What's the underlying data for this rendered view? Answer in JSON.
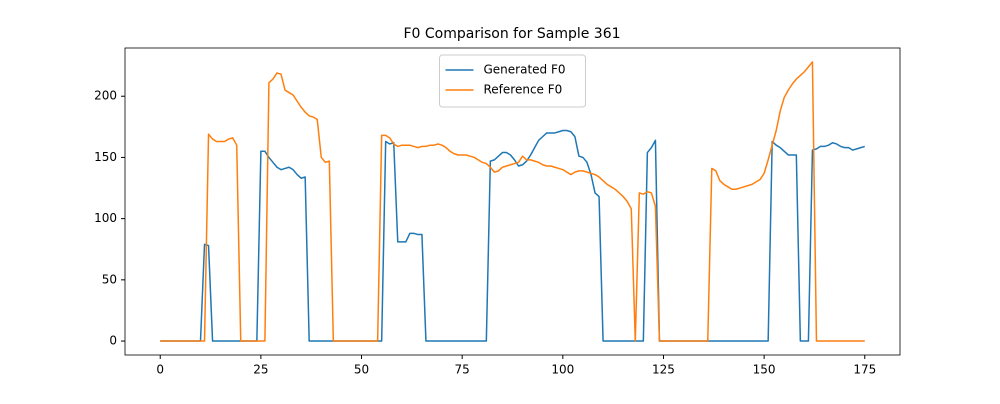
{
  "chart_data": {
    "type": "line",
    "title": "F0 Comparison for Sample 361",
    "x": [
      0,
      1,
      2,
      3,
      4,
      5,
      6,
      7,
      8,
      9,
      10,
      11,
      12,
      13,
      14,
      15,
      16,
      17,
      18,
      19,
      20,
      21,
      22,
      23,
      24,
      25,
      26,
      27,
      28,
      29,
      30,
      31,
      32,
      33,
      34,
      35,
      36,
      37,
      38,
      39,
      40,
      41,
      42,
      43,
      44,
      45,
      46,
      47,
      48,
      49,
      50,
      51,
      52,
      53,
      54,
      55,
      56,
      57,
      58,
      59,
      60,
      61,
      62,
      63,
      64,
      65,
      66,
      67,
      68,
      69,
      70,
      71,
      72,
      73,
      74,
      75,
      76,
      77,
      78,
      79,
      80,
      81,
      82,
      83,
      84,
      85,
      86,
      87,
      88,
      89,
      90,
      91,
      92,
      93,
      94,
      95,
      96,
      97,
      98,
      99,
      100,
      101,
      102,
      103,
      104,
      105,
      106,
      107,
      108,
      109,
      110,
      111,
      112,
      113,
      114,
      115,
      116,
      117,
      118,
      119,
      120,
      121,
      122,
      123,
      124,
      125,
      126,
      127,
      128,
      129,
      130,
      131,
      132,
      133,
      134,
      135,
      136,
      137,
      138,
      139,
      140,
      141,
      142,
      143,
      144,
      145,
      146,
      147,
      148,
      149,
      150,
      151,
      152,
      153,
      154,
      155,
      156,
      157,
      158,
      159,
      160,
      161,
      162,
      163,
      164,
      165,
      166,
      167,
      168,
      169,
      170,
      171,
      172,
      173,
      174,
      175
    ],
    "series": [
      {
        "name": "Generated F0",
        "color": "#1f77b4",
        "values": [
          0,
          0,
          0,
          0,
          0,
          0,
          0,
          0,
          0,
          0,
          0,
          79,
          78,
          0,
          0,
          0,
          0,
          0,
          0,
          0,
          0,
          0,
          0,
          0,
          0,
          155,
          155,
          150,
          146,
          142,
          140,
          141,
          142,
          140,
          136,
          133,
          134,
          0,
          0,
          0,
          0,
          0,
          0,
          0,
          0,
          0,
          0,
          0,
          0,
          0,
          0,
          0,
          0,
          0,
          0,
          0,
          163,
          161,
          162,
          81,
          81,
          81,
          88,
          88,
          87,
          87,
          0,
          0,
          0,
          0,
          0,
          0,
          0,
          0,
          0,
          0,
          0,
          0,
          0,
          0,
          0,
          0,
          147,
          148,
          151,
          154,
          154,
          152,
          148,
          143,
          144,
          147,
          152,
          158,
          164,
          167,
          170,
          170,
          170,
          171,
          172,
          172,
          171,
          167,
          151,
          150,
          146,
          136,
          121,
          118,
          0,
          0,
          0,
          0,
          0,
          0,
          0,
          0,
          0,
          0,
          0,
          154,
          158,
          164,
          0,
          0,
          0,
          0,
          0,
          0,
          0,
          0,
          0,
          0,
          0,
          0,
          0,
          0,
          0,
          0,
          0,
          0,
          0,
          0,
          0,
          0,
          0,
          0,
          0,
          0,
          0,
          0,
          163,
          160,
          158,
          155,
          152,
          152,
          152,
          0,
          0,
          0,
          156,
          157,
          159,
          159,
          160,
          162,
          161,
          159,
          158,
          158,
          156,
          157,
          158,
          159
        ]
      },
      {
        "name": "Reference F0",
        "color": "#ff7f0e",
        "values": [
          0,
          0,
          0,
          0,
          0,
          0,
          0,
          0,
          0,
          0,
          0,
          0,
          169,
          165,
          163,
          163,
          163,
          165,
          166,
          160,
          0,
          0,
          0,
          0,
          0,
          0,
          0,
          211,
          214,
          219,
          218,
          205,
          203,
          201,
          196,
          191,
          187,
          184,
          183,
          181,
          150,
          146,
          147,
          0,
          0,
          0,
          0,
          0,
          0,
          0,
          0,
          0,
          0,
          0,
          0,
          168,
          168,
          166,
          161,
          159,
          160,
          160,
          160,
          159,
          158,
          159,
          159,
          160,
          160,
          161,
          160,
          158,
          155,
          153,
          152,
          152,
          152,
          151,
          150,
          148,
          146,
          145,
          142,
          138,
          139,
          142,
          143,
          144,
          145,
          146,
          151,
          148,
          148,
          147,
          146,
          144,
          143,
          143,
          142,
          141,
          140,
          138,
          136,
          138,
          139,
          139,
          138,
          137,
          136,
          134,
          131,
          128,
          126,
          124,
          121,
          118,
          114,
          108,
          0,
          121,
          120,
          122,
          121,
          110,
          0,
          0,
          0,
          0,
          0,
          0,
          0,
          0,
          0,
          0,
          0,
          0,
          0,
          141,
          139,
          131,
          128,
          126,
          124,
          124,
          125,
          126,
          127,
          128,
          130,
          132,
          137,
          148,
          160,
          172,
          188,
          199,
          205,
          210,
          214,
          217,
          220,
          224,
          228,
          0,
          0,
          0,
          0,
          0,
          0,
          0,
          0,
          0,
          0,
          0,
          0,
          0
        ]
      }
    ],
    "xlim": [
      -8.75,
      183.75
    ],
    "ylim": [
      -11.4,
      239.4
    ],
    "xticks": [
      0,
      25,
      50,
      75,
      100,
      125,
      150,
      175
    ],
    "yticks": [
      0,
      50,
      100,
      150,
      200
    ],
    "legend": "upper center"
  }
}
